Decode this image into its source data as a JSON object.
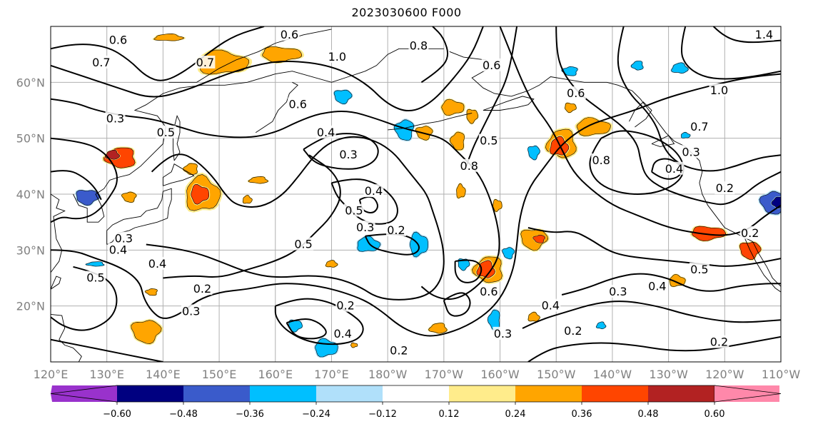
{
  "title": "2023030600 F000",
  "chart_data": {
    "type": "map",
    "projection": "equirectangular",
    "lon_range": [
      120,
      250
    ],
    "lat_range": [
      10,
      70
    ],
    "grid": true,
    "lon_ticks": [
      {
        "lon": 120,
        "label": "120°E"
      },
      {
        "lon": 130,
        "label": "130°E"
      },
      {
        "lon": 140,
        "label": "140°E"
      },
      {
        "lon": 150,
        "label": "150°E"
      },
      {
        "lon": 160,
        "label": "160°E"
      },
      {
        "lon": 170,
        "label": "170°E"
      },
      {
        "lon": 180,
        "label": "180°W"
      },
      {
        "lon": 190,
        "label": "170°W"
      },
      {
        "lon": 200,
        "label": "160°W"
      },
      {
        "lon": 210,
        "label": "150°W"
      },
      {
        "lon": 220,
        "label": "140°W"
      },
      {
        "lon": 230,
        "label": "130°W"
      },
      {
        "lon": 240,
        "label": "120°W"
      },
      {
        "lon": 250,
        "label": "110°W"
      }
    ],
    "lat_ticks": [
      {
        "lat": 20,
        "label": "20°N"
      },
      {
        "lat": 30,
        "label": "30°N"
      },
      {
        "lat": 40,
        "label": "40°N"
      },
      {
        "lat": 50,
        "label": "50°N"
      },
      {
        "lat": 60,
        "label": "60°N"
      }
    ],
    "colorbar": {
      "extend": "both",
      "colors": [
        "#9932cc",
        "#000080",
        "#3a5bcb",
        "#00bfff",
        "#b0e0fa",
        "#ffffff",
        "#ffec8b",
        "#ffa500",
        "#ff4500",
        "#b22222",
        "#ff88aa"
      ],
      "bounds": [
        -0.72,
        -0.6,
        -0.48,
        -0.36,
        -0.24,
        -0.12,
        0.12,
        0.24,
        0.36,
        0.48,
        0.6,
        0.72
      ],
      "tick_labels": [
        {
          "value": -0.6,
          "label": "−0.60"
        },
        {
          "value": -0.48,
          "label": "−0.48"
        },
        {
          "value": -0.36,
          "label": "−0.36"
        },
        {
          "value": -0.24,
          "label": "−0.24"
        },
        {
          "value": -0.12,
          "label": "−0.12"
        },
        {
          "value": 0.12,
          "label": "0.12"
        },
        {
          "value": 0.24,
          "label": "0.24"
        },
        {
          "value": 0.36,
          "label": "0.36"
        },
        {
          "value": 0.48,
          "label": "0.48"
        },
        {
          "value": 0.6,
          "label": "0.60"
        }
      ]
    },
    "shaded_blobs": [
      {
        "lon": 141,
        "lat": 68,
        "rlon": 2.5,
        "rlat": 0.6,
        "value": 0.3
      },
      {
        "lon": 150.5,
        "lat": 63.5,
        "rlon": 4.5,
        "rlat": 2.0,
        "value": 0.3
      },
      {
        "lon": 161,
        "lat": 65,
        "rlon": 3.5,
        "rlat": 1.3,
        "value": 0.3
      },
      {
        "lon": 172,
        "lat": 57.5,
        "rlon": 1.5,
        "rlat": 1.2,
        "value": -0.3
      },
      {
        "lon": 183,
        "lat": 51.5,
        "rlon": 1.6,
        "rlat": 1.8,
        "value": -0.28
      },
      {
        "lon": 132.5,
        "lat": 46.5,
        "rlon": 2.6,
        "rlat": 1.8,
        "value": 0.4
      },
      {
        "lon": 131,
        "lat": 47,
        "rlon": 1.2,
        "rlat": 0.8,
        "value": 0.5
      },
      {
        "lon": 147,
        "lat": 40,
        "rlon": 3.0,
        "rlat": 3.0,
        "value": 0.3
      },
      {
        "lon": 146.5,
        "lat": 40,
        "rlon": 1.6,
        "rlat": 1.6,
        "value": 0.4
      },
      {
        "lon": 126.5,
        "lat": 39.5,
        "rlon": 2.0,
        "rlat": 1.3,
        "value": -0.4
      },
      {
        "lon": 134,
        "lat": 39.5,
        "rlon": 1.2,
        "rlat": 0.9,
        "value": 0.3
      },
      {
        "lon": 145,
        "lat": 44.5,
        "rlon": 1.2,
        "rlat": 1.0,
        "value": 0.3
      },
      {
        "lon": 157,
        "lat": 42.5,
        "rlon": 1.6,
        "rlat": 0.6,
        "value": 0.3
      },
      {
        "lon": 155,
        "lat": 39,
        "rlon": 0.8,
        "rlat": 0.7,
        "value": 0.3
      },
      {
        "lon": 191.5,
        "lat": 55.5,
        "rlon": 2.0,
        "rlat": 1.3,
        "value": 0.3
      },
      {
        "lon": 195,
        "lat": 54,
        "rlon": 1.0,
        "rlat": 1.2,
        "value": 0.3
      },
      {
        "lon": 186.5,
        "lat": 51,
        "rlon": 1.4,
        "rlat": 1.2,
        "value": 0.28
      },
      {
        "lon": 192.5,
        "lat": 49.5,
        "rlon": 1.2,
        "rlat": 1.6,
        "value": 0.3
      },
      {
        "lon": 211,
        "lat": 49,
        "rlon": 2.5,
        "rlat": 2.5,
        "value": 0.3
      },
      {
        "lon": 210.5,
        "lat": 48.5,
        "rlon": 1.6,
        "rlat": 1.6,
        "value": 0.4
      },
      {
        "lon": 216.5,
        "lat": 52,
        "rlon": 3.0,
        "rlat": 1.5,
        "value": 0.3
      },
      {
        "lon": 212.5,
        "lat": 55.5,
        "rlon": 1.0,
        "rlat": 0.8,
        "value": 0.3
      },
      {
        "lon": 206,
        "lat": 47.5,
        "rlon": 1.0,
        "rlat": 1.2,
        "value": -0.3
      },
      {
        "lon": 212.5,
        "lat": 62,
        "rlon": 1.3,
        "rlat": 0.8,
        "value": -0.3
      },
      {
        "lon": 224.5,
        "lat": 63,
        "rlon": 1.0,
        "rlat": 0.8,
        "value": -0.3
      },
      {
        "lon": 232,
        "lat": 62.5,
        "rlon": 1.4,
        "rlat": 0.9,
        "value": -0.3
      },
      {
        "lon": 193,
        "lat": 40.5,
        "rlon": 0.8,
        "rlat": 1.2,
        "value": 0.3
      },
      {
        "lon": 199.5,
        "lat": 38,
        "rlon": 0.8,
        "rlat": 1.0,
        "value": 0.3
      },
      {
        "lon": 206,
        "lat": 32,
        "rlon": 2.3,
        "rlat": 1.8,
        "value": 0.3
      },
      {
        "lon": 207,
        "lat": 32,
        "rlon": 1.0,
        "rlat": 0.7,
        "value": 0.4
      },
      {
        "lon": 198,
        "lat": 26.5,
        "rlon": 2.5,
        "rlat": 2.3,
        "value": 0.3
      },
      {
        "lon": 197.5,
        "lat": 26.5,
        "rlon": 1.5,
        "rlat": 1.5,
        "value": 0.45
      },
      {
        "lon": 176.5,
        "lat": 31,
        "rlon": 2.0,
        "rlat": 1.3,
        "value": -0.3
      },
      {
        "lon": 185.5,
        "lat": 31,
        "rlon": 1.6,
        "rlat": 2.0,
        "value": -0.3
      },
      {
        "lon": 193.5,
        "lat": 27.5,
        "rlon": 1.0,
        "rlat": 1.0,
        "value": -0.3
      },
      {
        "lon": 201.5,
        "lat": 29.5,
        "rlon": 1.0,
        "rlat": 1.0,
        "value": -0.3
      },
      {
        "lon": 199,
        "lat": 17.5,
        "rlon": 1.0,
        "rlat": 1.8,
        "value": -0.3
      },
      {
        "lon": 189,
        "lat": 16,
        "rlon": 1.5,
        "rlat": 0.9,
        "value": 0.28
      },
      {
        "lon": 206,
        "lat": 18,
        "rlon": 1.0,
        "rlat": 0.8,
        "value": 0.28
      },
      {
        "lon": 169,
        "lat": 12.5,
        "rlon": 2.0,
        "rlat": 1.5,
        "value": -0.3
      },
      {
        "lon": 163.5,
        "lat": 16.5,
        "rlon": 1.2,
        "rlat": 1.0,
        "value": -0.3
      },
      {
        "lon": 137,
        "lat": 15.5,
        "rlon": 2.5,
        "rlat": 2.0,
        "value": 0.3
      },
      {
        "lon": 138,
        "lat": 22.5,
        "rlon": 1.0,
        "rlat": 0.6,
        "value": 0.28
      },
      {
        "lon": 128,
        "lat": 27.5,
        "rlon": 1.5,
        "rlat": 0.4,
        "value": -0.28
      },
      {
        "lon": 170,
        "lat": 27.5,
        "rlon": 1.0,
        "rlat": 0.6,
        "value": 0.28
      },
      {
        "lon": 231.5,
        "lat": 24.5,
        "rlon": 1.4,
        "rlat": 1.0,
        "value": 0.28
      },
      {
        "lon": 237,
        "lat": 33,
        "rlon": 3.0,
        "rlat": 1.2,
        "value": 0.38
      },
      {
        "lon": 244.5,
        "lat": 30,
        "rlon": 1.8,
        "rlat": 1.5,
        "value": 0.4
      },
      {
        "lon": 248.5,
        "lat": 38.5,
        "rlon": 2.0,
        "rlat": 2.0,
        "value": -0.4
      },
      {
        "lon": 249.5,
        "lat": 38.5,
        "rlon": 1.0,
        "rlat": 1.0,
        "value": -0.55
      },
      {
        "lon": 218,
        "lat": 16.5,
        "rlon": 0.8,
        "rlat": 0.6,
        "value": -0.28
      },
      {
        "lon": 233,
        "lat": 50.5,
        "rlon": 0.8,
        "rlat": 0.5,
        "value": -0.28
      },
      {
        "lon": 174,
        "lat": 13,
        "rlon": 0.6,
        "rlat": 0.4,
        "value": 0.28
      }
    ],
    "contour_labels": [
      {
        "lon": 132,
        "lat": 67.5,
        "text": "0.6"
      },
      {
        "lon": 162.5,
        "lat": 68.5,
        "text": "0.6"
      },
      {
        "lon": 129,
        "lat": 63.5,
        "text": "0.7"
      },
      {
        "lon": 147.5,
        "lat": 63.5,
        "text": "0.7"
      },
      {
        "lon": 171,
        "lat": 64.5,
        "text": "1.0"
      },
      {
        "lon": 185.5,
        "lat": 66.5,
        "text": "0.8"
      },
      {
        "lon": 198.5,
        "lat": 63,
        "text": "0.6"
      },
      {
        "lon": 164,
        "lat": 56,
        "text": "0.6"
      },
      {
        "lon": 131.5,
        "lat": 53.5,
        "text": "0.3"
      },
      {
        "lon": 140.5,
        "lat": 51,
        "text": "0.5"
      },
      {
        "lon": 169,
        "lat": 51,
        "text": "0.4"
      },
      {
        "lon": 173,
        "lat": 47,
        "text": "0.3"
      },
      {
        "lon": 194.5,
        "lat": 45,
        "text": "0.8"
      },
      {
        "lon": 198,
        "lat": 49.5,
        "text": "0.5"
      },
      {
        "lon": 213.5,
        "lat": 58,
        "text": "0.6"
      },
      {
        "lon": 218,
        "lat": 46,
        "text": "0.8"
      },
      {
        "lon": 239,
        "lat": 58.5,
        "text": "1.0"
      },
      {
        "lon": 235.5,
        "lat": 52,
        "text": "0.7"
      },
      {
        "lon": 234,
        "lat": 47.5,
        "text": "0.3"
      },
      {
        "lon": 231,
        "lat": 44.5,
        "text": "0.4"
      },
      {
        "lon": 240,
        "lat": 41,
        "text": "0.2"
      },
      {
        "lon": 177.5,
        "lat": 40.5,
        "text": "0.4"
      },
      {
        "lon": 174,
        "lat": 37,
        "text": "0.5"
      },
      {
        "lon": 176,
        "lat": 34,
        "text": "0.3"
      },
      {
        "lon": 181.5,
        "lat": 33.5,
        "text": "0.2"
      },
      {
        "lon": 165,
        "lat": 31,
        "text": "0.5"
      },
      {
        "lon": 133,
        "lat": 32,
        "text": "0.3"
      },
      {
        "lon": 132,
        "lat": 30,
        "text": "0.4"
      },
      {
        "lon": 139,
        "lat": 27.5,
        "text": "0.4"
      },
      {
        "lon": 128,
        "lat": 25,
        "text": "0.5"
      },
      {
        "lon": 147,
        "lat": 23,
        "text": "0.2"
      },
      {
        "lon": 145,
        "lat": 19,
        "text": "0.3"
      },
      {
        "lon": 172.5,
        "lat": 20,
        "text": "0.2"
      },
      {
        "lon": 172,
        "lat": 15,
        "text": "0.4"
      },
      {
        "lon": 198,
        "lat": 22.5,
        "text": "0.6"
      },
      {
        "lon": 209,
        "lat": 20,
        "text": "0.4"
      },
      {
        "lon": 228,
        "lat": 23.5,
        "text": "0.4"
      },
      {
        "lon": 235.5,
        "lat": 26.5,
        "text": "0.5"
      },
      {
        "lon": 221,
        "lat": 22.5,
        "text": "0.3"
      },
      {
        "lon": 213,
        "lat": 15.5,
        "text": "0.2"
      },
      {
        "lon": 200.5,
        "lat": 15,
        "text": "0.3"
      },
      {
        "lon": 182,
        "lat": 12,
        "text": "0.2"
      },
      {
        "lon": 239,
        "lat": 13.5,
        "text": "0.2"
      },
      {
        "lon": 244.5,
        "lat": 33,
        "text": "0.2"
      },
      {
        "lon": 247,
        "lat": 68.5,
        "text": "1.4"
      }
    ]
  }
}
